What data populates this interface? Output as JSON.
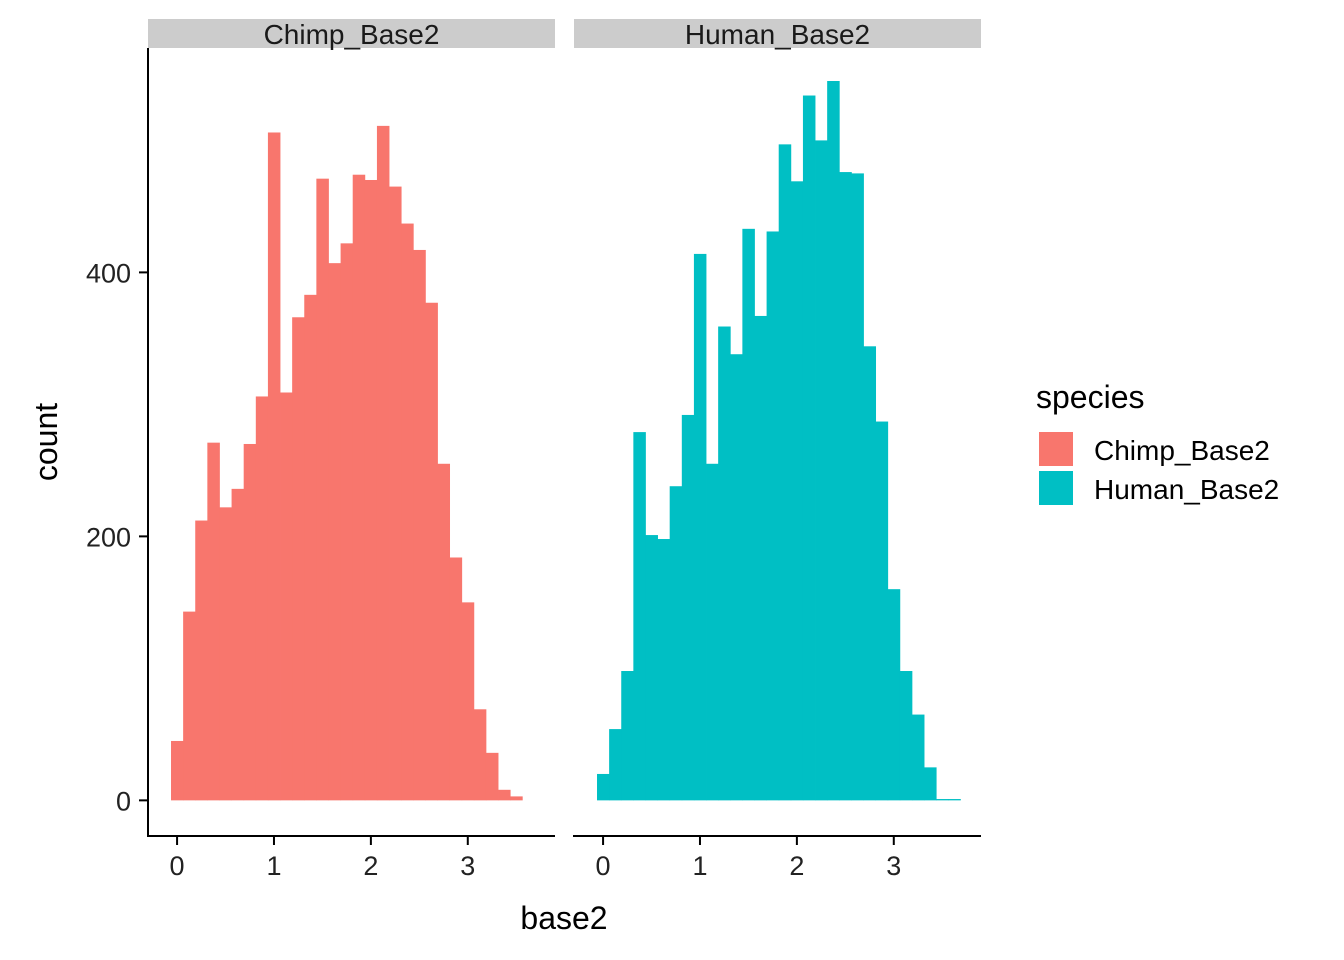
{
  "chart_data": {
    "type": "histogram",
    "xlabel": "base2",
    "ylabel": "count",
    "facet_var": "species",
    "x_ticks": [
      0,
      1,
      2,
      3
    ],
    "y_ticks": [
      0,
      200,
      400
    ],
    "xlim": [
      -0.3,
      3.9
    ],
    "ylim": [
      -27,
      570
    ],
    "bin_width": 0.125,
    "grid": false,
    "legend": {
      "title": "species",
      "position": "right",
      "entries": [
        {
          "label": "Chimp_Base2",
          "color": "#F8766D"
        },
        {
          "label": "Human_Base2",
          "color": "#00BFC4"
        }
      ]
    },
    "panels": [
      {
        "strip": "Chimp_Base2",
        "color": "#F8766D",
        "first_bin_left": -0.0625,
        "values": [
          45,
          143,
          212,
          271,
          222,
          236,
          270,
          306,
          506,
          309,
          366,
          383,
          471,
          407,
          422,
          474,
          470,
          511,
          465,
          437,
          417,
          377,
          255,
          184,
          150,
          69,
          36,
          8,
          3
        ]
      },
      {
        "strip": "Human_Base2",
        "color": "#00BFC4",
        "first_bin_left": -0.0625,
        "values": [
          20,
          54,
          98,
          279,
          201,
          198,
          238,
          292,
          414,
          255,
          359,
          338,
          433,
          367,
          431,
          497,
          469,
          534,
          500,
          545,
          476,
          475,
          344,
          287,
          160,
          98,
          65,
          25,
          1,
          1
        ]
      }
    ]
  }
}
